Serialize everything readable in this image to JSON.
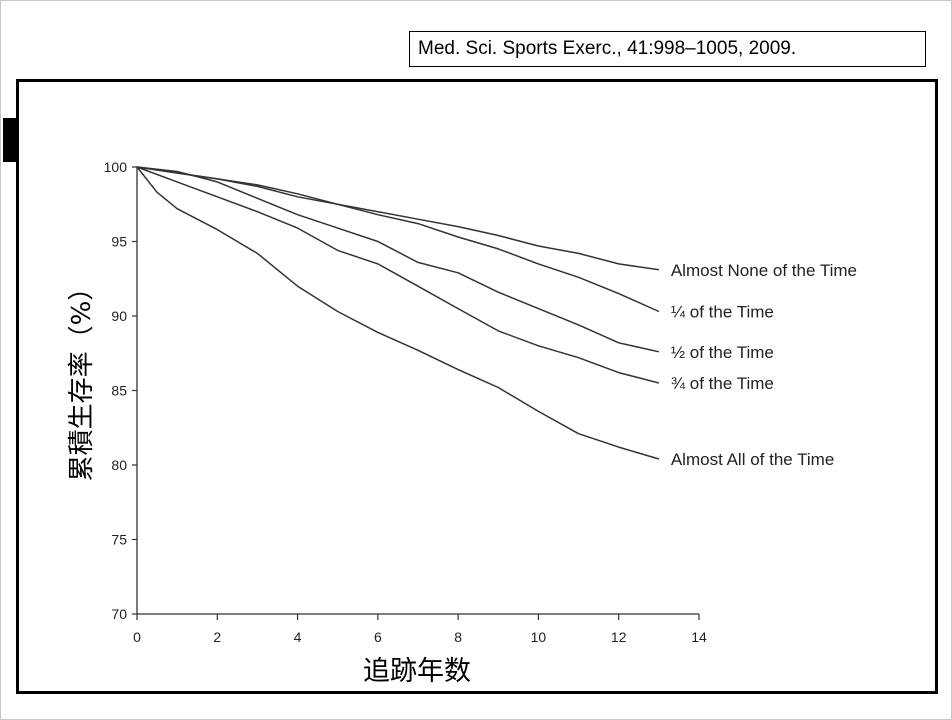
{
  "citation": "Med. Sci. Sports Exerc., 41:998–1005, 2009.",
  "chart_data": {
    "type": "line",
    "xlabel": "追跡年数",
    "ylabel": "累積生存率（%）",
    "xlim": [
      0,
      14
    ],
    "ylim": [
      70,
      100
    ],
    "xticks": [
      0,
      2,
      4,
      6,
      8,
      10,
      12,
      14
    ],
    "yticks": [
      70,
      75,
      80,
      85,
      90,
      95,
      100
    ],
    "grid": false,
    "legend": "inline labels at line ends",
    "line_color": "#333333",
    "series": [
      {
        "name": "Almost None of the Time",
        "x": [
          0,
          1,
          2,
          3,
          4,
          5,
          6,
          7,
          8,
          9,
          10,
          11,
          12,
          13
        ],
        "y": [
          100,
          99.6,
          99.2,
          98.8,
          98.2,
          97.5,
          97.0,
          96.5,
          96.0,
          95.4,
          94.7,
          94.2,
          93.5,
          93.1
        ]
      },
      {
        "name": "¼ of the Time",
        "x": [
          0,
          1,
          2,
          3,
          4,
          5,
          6,
          7,
          8,
          9,
          10,
          11,
          12,
          13
        ],
        "y": [
          100,
          99.6,
          99.2,
          98.7,
          98.0,
          97.5,
          96.8,
          96.2,
          95.3,
          94.5,
          93.5,
          92.6,
          91.5,
          90.3
        ]
      },
      {
        "name": "½ of the Time",
        "x": [
          0,
          1,
          2,
          3,
          4,
          5,
          6,
          7,
          8,
          9,
          10,
          11,
          12,
          13
        ],
        "y": [
          100,
          99.7,
          99.0,
          97.9,
          96.8,
          95.9,
          95.0,
          93.6,
          92.9,
          91.6,
          90.5,
          89.4,
          88.2,
          87.6
        ]
      },
      {
        "name": "¾ of the Time",
        "x": [
          0,
          1,
          2,
          3,
          4,
          5,
          6,
          7,
          8,
          9,
          10,
          11,
          12,
          13
        ],
        "y": [
          100,
          99.0,
          98.0,
          97.0,
          95.9,
          94.4,
          93.5,
          92.0,
          90.5,
          89.0,
          88.0,
          87.2,
          86.2,
          85.5
        ]
      },
      {
        "name": "Almost All of the Time",
        "x": [
          0,
          0.5,
          1,
          2,
          3,
          4,
          5,
          6,
          7,
          8,
          9,
          10,
          11,
          12,
          13
        ],
        "y": [
          100,
          98.3,
          97.2,
          95.8,
          94.2,
          92.0,
          90.3,
          88.9,
          87.7,
          86.4,
          85.2,
          83.6,
          82.1,
          81.2,
          80.4
        ]
      }
    ]
  }
}
